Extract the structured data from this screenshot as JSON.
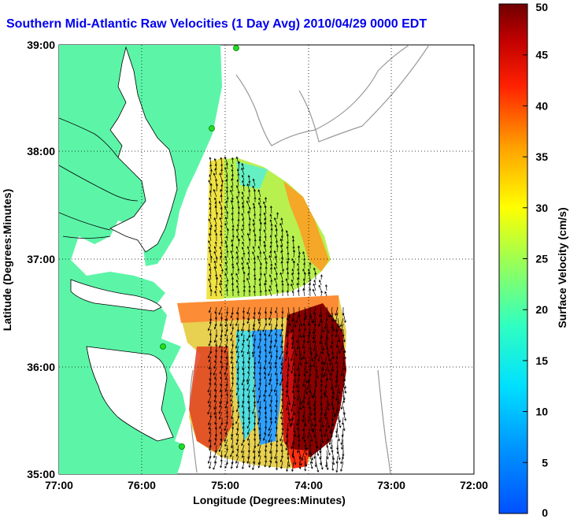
{
  "title": "Southern Mid-Atlantic Raw Velocities (1 Day Avg) 2010/04/29 0000 EDT",
  "map": {
    "xlabel": "Longitude (Degrees:Minutes)",
    "ylabel": "Latitude (Degrees:Minutes)",
    "x_ticks": [
      "77:00",
      "76:00",
      "75:00",
      "74:00",
      "73:00",
      "72:00"
    ],
    "y_ticks": [
      "39:00",
      "38:00",
      "37:00",
      "36:00",
      "35:00"
    ],
    "lon_range": [
      -77,
      -72
    ],
    "lat_range": [
      35,
      39
    ],
    "land_color": "#5cf5a8",
    "grid": true
  },
  "colorbar": {
    "label": "Surface Velocity (cm/s)",
    "ticks": [
      "0",
      "5",
      "10",
      "15",
      "20",
      "25",
      "30",
      "35",
      "40",
      "45",
      "50"
    ],
    "range": [
      0,
      50
    ],
    "colormap": "jet"
  },
  "icons": {
    "station-marker": "green circle"
  }
}
